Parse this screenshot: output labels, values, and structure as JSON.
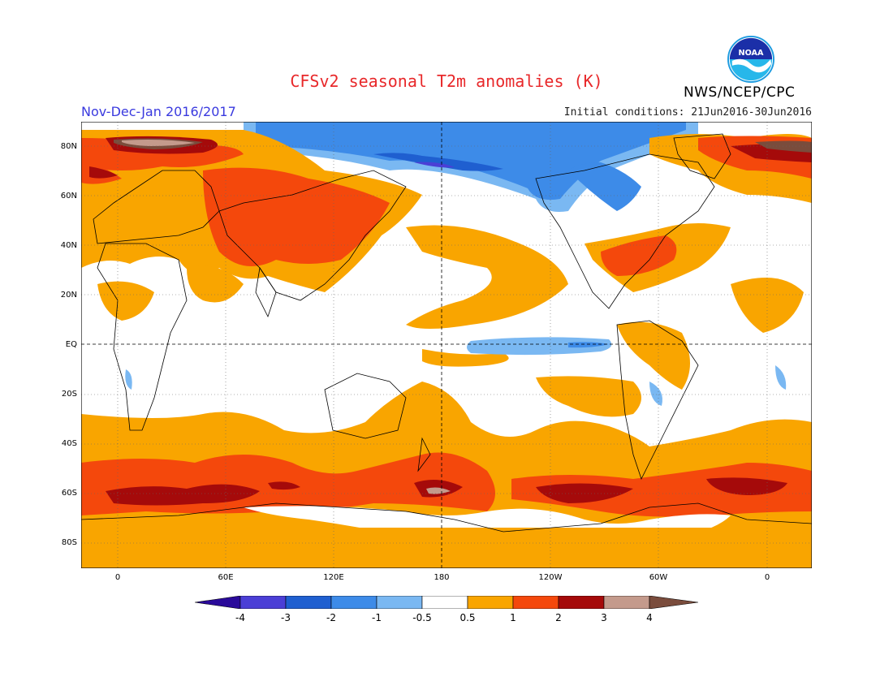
{
  "header": {
    "title": "CFSv2 seasonal T2m anomalies (K)",
    "season": "Nov-Dec-Jan 2016/2017",
    "init": "Initial conditions: 21Jun2016-30Jun2016",
    "agency": "NWS/NCEP/CPC",
    "logo_text": "NOAA"
  },
  "map": {
    "lat_labels": [
      "80N",
      "60N",
      "40N",
      "20N",
      "EQ",
      "20S",
      "40S",
      "60S",
      "80S"
    ],
    "lon_labels": [
      "0",
      "60E",
      "120E",
      "180",
      "120W",
      "60W",
      "0"
    ]
  },
  "colorbar": {
    "labels": [
      "-4",
      "-3",
      "-2",
      "-1",
      "-0.5",
      "0.5",
      "1",
      "2",
      "3",
      "4"
    ],
    "colors": [
      "#2a0a9a",
      "#4b3fd6",
      "#1f5fd0",
      "#3d8be8",
      "#7ab8f2",
      "#ffffff",
      "#f9a500",
      "#f4480c",
      "#a50a0a",
      "#c49a8c",
      "#7a4c3c"
    ]
  }
}
